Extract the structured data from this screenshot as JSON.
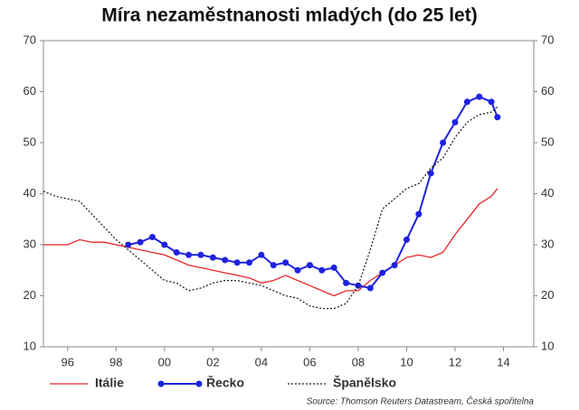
{
  "chart_data": {
    "type": "line",
    "title": "Míra nezaměstnanosti mladých (do 25 let)",
    "source": "Source: Thomson Reuters Datastream, Česká spořitelna",
    "x": [
      1995,
      1995.5,
      1996,
      1996.5,
      1997,
      1997.5,
      1998,
      1998.5,
      1999,
      1999.5,
      2000,
      2000.5,
      2001,
      2001.5,
      2002,
      2002.5,
      2003,
      2003.5,
      2004,
      2004.5,
      2005,
      2005.5,
      2006,
      2006.5,
      2007,
      2007.5,
      2008,
      2008.5,
      2009,
      2009.5,
      2010,
      2010.5,
      2011,
      2011.5,
      2012,
      2012.5,
      2013,
      2013.5,
      2013.75
    ],
    "series": [
      {
        "name": "Itálie",
        "color": "#e8262a",
        "style": "solid",
        "markers": false,
        "values": [
          30,
          30,
          30,
          31,
          30.5,
          30.5,
          30,
          29.5,
          29,
          28.5,
          28,
          27,
          26,
          25.5,
          25,
          24.5,
          24,
          23.5,
          22.5,
          23,
          24,
          23,
          22,
          21,
          20,
          21,
          21,
          23,
          24.5,
          26,
          27.5,
          28,
          27.5,
          28.5,
          32,
          35,
          38,
          39.5,
          41
        ]
      },
      {
        "name": "Řecko",
        "color": "#1d22e0",
        "style": "solid",
        "markers": true,
        "values": [
          null,
          null,
          null,
          null,
          null,
          null,
          null,
          30,
          30.5,
          31.5,
          30,
          28.5,
          28,
          28,
          27.5,
          27,
          26.5,
          26.5,
          28,
          26,
          26.5,
          25,
          26,
          25,
          25.5,
          22.5,
          22,
          21.5,
          24.5,
          26,
          31,
          36,
          44,
          50,
          54,
          58,
          59,
          58,
          55
        ]
      },
      {
        "name": "Španělsko",
        "color": "#222222",
        "style": "dotted",
        "markers": false,
        "values": [
          40.5,
          39.5,
          39,
          38.5,
          36,
          33.5,
          31,
          29,
          27,
          25,
          23,
          22.5,
          21,
          21.5,
          22.5,
          23,
          23,
          22.5,
          22,
          21,
          20,
          19.5,
          18,
          17.5,
          17.5,
          18.5,
          22,
          29,
          37,
          39,
          41,
          42,
          45,
          47,
          51,
          54,
          55.5,
          56,
          57
        ]
      }
    ],
    "xlim": [
      1995,
      2015.25
    ],
    "xticks": [
      {
        "value": 1996,
        "label": "96"
      },
      {
        "value": 1998,
        "label": "98"
      },
      {
        "value": 2000,
        "label": "00"
      },
      {
        "value": 2002,
        "label": "02"
      },
      {
        "value": 2004,
        "label": "04"
      },
      {
        "value": 2006,
        "label": "06"
      },
      {
        "value": 2008,
        "label": "08"
      },
      {
        "value": 2010,
        "label": "10"
      },
      {
        "value": 2012,
        "label": "12"
      },
      {
        "value": 2014,
        "label": "14"
      }
    ],
    "ylim": [
      10,
      70
    ],
    "yticks": [
      10,
      20,
      30,
      40,
      50,
      60,
      70
    ],
    "y2lim": [
      10,
      70
    ],
    "y2ticks": [
      10,
      20,
      30,
      40,
      50,
      60,
      70
    ]
  }
}
